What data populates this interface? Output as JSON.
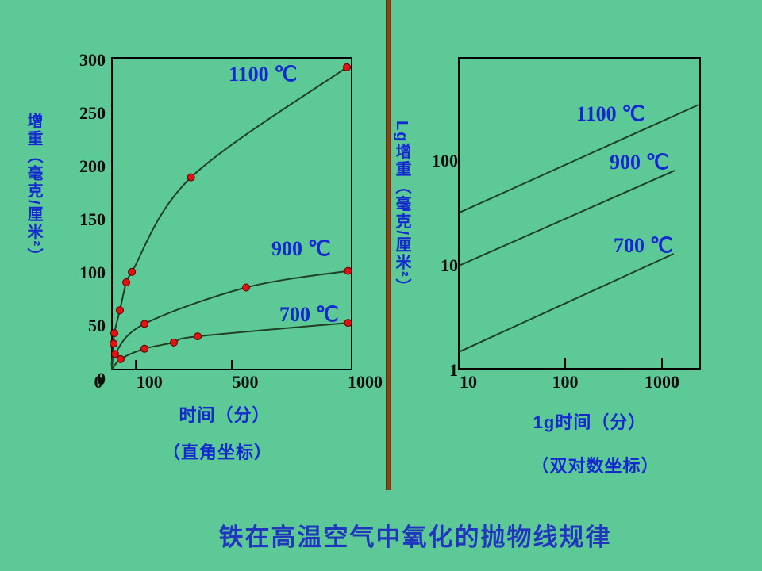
{
  "page": {
    "title": "铁在高温空气中氧化的抛物线规律",
    "background_color": "#5cc997",
    "divider_color": "#7b4513",
    "label_blue": "#1329cf",
    "title_blue": "#2036bd",
    "curve_color": "#1f4023",
    "point_color": "#e11212",
    "axis_color": "#000000"
  },
  "chart_data": [
    {
      "type": "line",
      "coords": "linear",
      "title": "",
      "xlabel": "时间（分）",
      "sublabel": "（直角坐标）",
      "ylabel": "增重（毫克/厘米²）",
      "xlim": [
        0,
        1000
      ],
      "ylim": [
        0,
        300
      ],
      "x_ticks": [
        0,
        100,
        500,
        1000
      ],
      "y_ticks": [
        300,
        250,
        200,
        150,
        100,
        50,
        0
      ],
      "grid": false,
      "series": [
        {
          "name": "1100 ℃",
          "x": [
            7,
            10,
            33,
            60,
            83,
            330,
            980
          ],
          "y": [
            25,
            35,
            57,
            84,
            94,
            185,
            291
          ]
        },
        {
          "name": "900 ℃",
          "x": [
            13,
            136,
            560,
            985
          ],
          "y": [
            15,
            44,
            79,
            95
          ]
        },
        {
          "name": "700 ℃",
          "x": [
            36,
            136,
            258,
            358,
            985
          ],
          "y": [
            10,
            20,
            26,
            32,
            45
          ]
        }
      ]
    },
    {
      "type": "line",
      "coords": "log-log",
      "title": "",
      "xlabel": "1g时间（分）",
      "sublabel": "（双对数坐标）",
      "ylabel": "Lg增重（毫克/厘米²）",
      "xlim": [
        8,
        2500
      ],
      "ylim": [
        1,
        1000
      ],
      "x_ticks": [
        10,
        100,
        1000
      ],
      "y_ticks": [
        100,
        10,
        1
      ],
      "grid": false,
      "series": [
        {
          "name": "1100 ℃",
          "x": [
            8,
            2400
          ],
          "y": [
            32,
            345
          ]
        },
        {
          "name": "900 ℃",
          "x": [
            8,
            1350
          ],
          "y": [
            10,
            81
          ]
        },
        {
          "name": "700 ℃",
          "x": [
            8,
            1320
          ],
          "y": [
            1.5,
            13
          ]
        }
      ]
    }
  ]
}
